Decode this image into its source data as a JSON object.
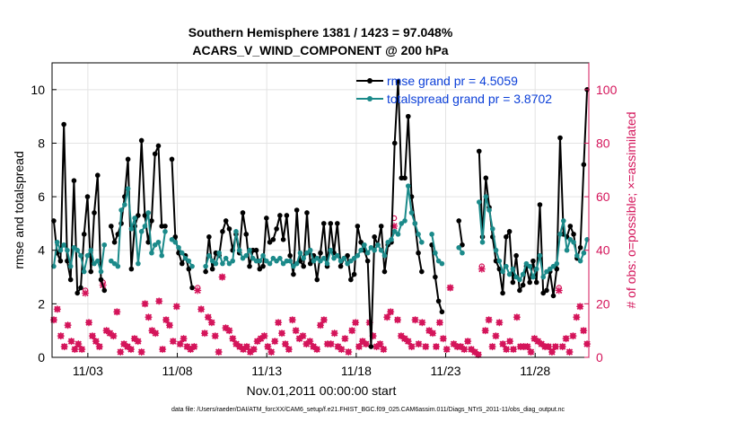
{
  "chart_data": {
    "type": "line",
    "title_line1": "Southern Hemisphere 1381 / 1423 = 97.048%",
    "title_line2": "ACARS_V_WIND_COMPONENT @ 200 hPa",
    "xlabel": "Nov.01,2011 00:00:00 start",
    "ylabel_left": "rmse and totalspread",
    "ylabel_right": "# of obs: o=possible; ×=assimilated",
    "footer": "data file: /Users/raeder/DAI/ATM_forcXX/CAM6_setup/f.e21.FHIST_BGC.f09_025.CAM6assim.011/Diags_NTrS_2011-11/obs_diag_output.nc",
    "xlim": [
      1.0,
      31.0
    ],
    "ylim_left": [
      0,
      11
    ],
    "ylim_right": [
      0,
      110
    ],
    "x_ticks": [
      3,
      8,
      13,
      18,
      23,
      28
    ],
    "x_tick_labels": [
      "11/03",
      "11/08",
      "11/13",
      "11/18",
      "11/23",
      "11/28"
    ],
    "y_ticks_left": [
      0,
      2,
      4,
      6,
      8,
      10
    ],
    "y_ticks_right": [
      0,
      20,
      40,
      60,
      80,
      100
    ],
    "grid": true,
    "legend_position": "top-right",
    "colors": {
      "rmse": "#000000",
      "spread": "#1b8a8a",
      "obs": "#d4145a",
      "legend_text": "#0b3fd8",
      "right_axis": "#d4145a"
    },
    "series": [
      {
        "name": "rmse",
        "legend": "rmse grand pr = 4.5059",
        "color": "#000000",
        "values": [
          5.1,
          3.9,
          3.6,
          8.7,
          3.6,
          2.9,
          6.6,
          2.4,
          2.6,
          4.6,
          6.0,
          3.2,
          5.4,
          6.8,
          2.9,
          2.5,
          null,
          4.9,
          4.3,
          4.6,
          5.0,
          6.0,
          7.4,
          3.3,
          4.9,
          5.3,
          8.1,
          5.3,
          4.3,
          5.1,
          7.6,
          7.9,
          4.9,
          4.9,
          null,
          7.4,
          4.5,
          3.9,
          3.5,
          3.8,
          3.3,
          2.6,
          null,
          null,
          null,
          3.2,
          4.5,
          3.3,
          3.9,
          3.8,
          4.7,
          5.1,
          4.8,
          4.0,
          4.6,
          3.9,
          5.4,
          4.6,
          3.4,
          4.0,
          4.0,
          3.3,
          3.4,
          5.2,
          4.3,
          4.4,
          4.8,
          5.3,
          4.4,
          5.3,
          3.8,
          3.1,
          5.5,
          3.6,
          3.4,
          5.4,
          3.5,
          3.8,
          2.9,
          3.9,
          5.0,
          3.4,
          5.0,
          3.9,
          5.0,
          3.4,
          3.7,
          3.8,
          2.9,
          3.1,
          4.9,
          4.3,
          4.0,
          3.6,
          0.4,
          4.5,
          4.2,
          4.9,
          3.2,
          4.2,
          4.3,
          8.0,
          10.3,
          6.7,
          6.7,
          9.0,
          6.0,
          5.0,
          3.9,
          3.2,
          null,
          null,
          4.2,
          3.0,
          2.1,
          1.7,
          null,
          null,
          null,
          null,
          5.1,
          4.2,
          null,
          null,
          null,
          null,
          7.7,
          4.5,
          6.7,
          5.6,
          4.5,
          3.6,
          3.3,
          2.4,
          4.5,
          4.7,
          2.8,
          3.8,
          2.5,
          2.7,
          3.4,
          2.8,
          3.6,
          2.8,
          5.7,
          2.4,
          2.5,
          3.2,
          2.3,
          3.3,
          8.2,
          4.6,
          4.5,
          4.9,
          4.6,
          3.7,
          4.1,
          7.2,
          10.0
        ]
      },
      {
        "name": "totalspread",
        "legend": "totalspread grand pr = 3.8702",
        "color": "#1b8a8a",
        "values": [
          3.4,
          4.3,
          4.0,
          4.2,
          4.0,
          3.4,
          4.1,
          4.0,
          3.8,
          3.2,
          3.8,
          4.0,
          3.5,
          3.6,
          3.2,
          4.2,
          null,
          3.6,
          3.5,
          3.4,
          5.5,
          5.7,
          6.3,
          4.8,
          5.2,
          3.5,
          4.7,
          4.9,
          5.4,
          3.9,
          4.2,
          4.3,
          3.8,
          4.7,
          null,
          4.4,
          4.3,
          4.1,
          3.9,
          3.7,
          3.6,
          3.4,
          null,
          null,
          null,
          3.4,
          3.8,
          3.6,
          3.5,
          3.9,
          3.5,
          3.7,
          3.5,
          3.6,
          4.7,
          4.0,
          3.7,
          3.8,
          4.0,
          3.7,
          3.6,
          3.6,
          3.8,
          3.6,
          3.5,
          3.7,
          3.6,
          3.7,
          3.5,
          3.6,
          3.6,
          3.4,
          3.5,
          3.9,
          3.7,
          3.9,
          4.0,
          3.6,
          3.7,
          3.6,
          3.7,
          3.5,
          4.0,
          3.7,
          3.8,
          3.6,
          3.7,
          3.5,
          3.6,
          3.7,
          3.8,
          4.0,
          4.2,
          3.9,
          4.1,
          4.0,
          4.2,
          4.0,
          3.8,
          4.3,
          4.4,
          4.7,
          4.6,
          5.0,
          5.1,
          6.4,
          5.4,
          5.0,
          4.6,
          4.3,
          null,
          null,
          4.6,
          3.9,
          3.6,
          3.5,
          null,
          null,
          null,
          null,
          4.1,
          3.9,
          null,
          null,
          null,
          null,
          5.8,
          4.3,
          6.0,
          5.5,
          4.8,
          4.0,
          3.6,
          3.2,
          3.4,
          3.1,
          3.3,
          3.0,
          2.9,
          3.1,
          3.5,
          3.4,
          3.0,
          3.3,
          3.8,
          3.0,
          3.2,
          3.3,
          3.4,
          3.5,
          4.6,
          5.1,
          4.0,
          4.4,
          4.3,
          3.8,
          3.6,
          3.9,
          4.4
        ]
      }
    ],
    "obs_possible": [
      14,
      18,
      8,
      4,
      12,
      6,
      3,
      5,
      3,
      25,
      13,
      8,
      6,
      4,
      28,
      10,
      9,
      8,
      17,
      2,
      5,
      4,
      3,
      7,
      6,
      2,
      20,
      15,
      10,
      9,
      21,
      3,
      14,
      12,
      6,
      19,
      5,
      7,
      4,
      3,
      4,
      26,
      18,
      9,
      15,
      13,
      8,
      2,
      30,
      11,
      10,
      7,
      5,
      4,
      3,
      4,
      2,
      3,
      6,
      7,
      8,
      4,
      2,
      6,
      13,
      9,
      5,
      3,
      14,
      10,
      7,
      8,
      5,
      6,
      4,
      3,
      12,
      14,
      5,
      5,
      9,
      4,
      3,
      7,
      2,
      10,
      13,
      4,
      6,
      5,
      13,
      8,
      4,
      5,
      3,
      15,
      17,
      52,
      14,
      8,
      7,
      6,
      4,
      14,
      5,
      13,
      4,
      10,
      9,
      4,
      13,
      7,
      3,
      26,
      5,
      4,
      4,
      3,
      6,
      3,
      2,
      1,
      34,
      10,
      14,
      4,
      8,
      13,
      5,
      3,
      6,
      3,
      15,
      4,
      4,
      4,
      2,
      7,
      6,
      5,
      4,
      4,
      2,
      4,
      26,
      4,
      7,
      2,
      8,
      15,
      19,
      10,
      5
    ],
    "obs_assimilated": [
      14,
      18,
      8,
      4,
      12,
      6,
      3,
      5,
      3,
      24,
      13,
      8,
      6,
      4,
      27,
      10,
      9,
      8,
      17,
      2,
      5,
      4,
      3,
      7,
      6,
      2,
      20,
      15,
      10,
      9,
      21,
      3,
      14,
      12,
      6,
      19,
      5,
      7,
      4,
      3,
      4,
      25,
      18,
      9,
      15,
      13,
      8,
      2,
      30,
      11,
      10,
      7,
      5,
      4,
      3,
      4,
      2,
      3,
      6,
      7,
      8,
      4,
      2,
      6,
      13,
      9,
      5,
      3,
      14,
      10,
      7,
      8,
      5,
      6,
      4,
      3,
      12,
      14,
      5,
      5,
      9,
      4,
      3,
      7,
      2,
      10,
      13,
      4,
      6,
      5,
      13,
      8,
      4,
      5,
      3,
      15,
      17,
      49,
      14,
      8,
      7,
      6,
      4,
      14,
      5,
      13,
      4,
      10,
      9,
      4,
      13,
      7,
      3,
      26,
      5,
      4,
      4,
      3,
      6,
      3,
      2,
      1,
      33,
      10,
      14,
      4,
      8,
      13,
      5,
      3,
      6,
      3,
      15,
      4,
      4,
      4,
      2,
      7,
      6,
      5,
      4,
      4,
      2,
      4,
      25,
      4,
      7,
      2,
      8,
      15,
      19,
      10,
      5
    ]
  }
}
